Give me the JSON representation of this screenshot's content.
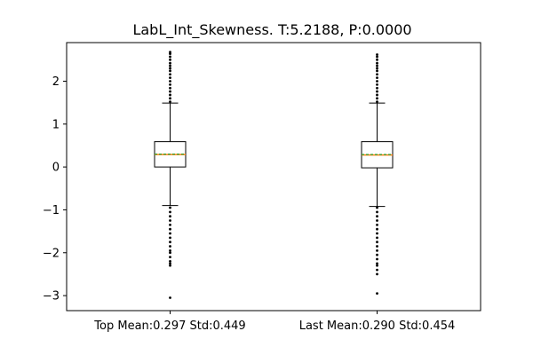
{
  "chart_data": {
    "type": "boxplot",
    "title": "LabL_Int_Skewness. T:5.2188, P:0.0000",
    "xlabel": "",
    "ylabel": "",
    "categories": [
      "Top Mean:0.297 Std:0.449",
      "Last Mean:0.290 Std:0.454"
    ],
    "ylim": [
      -3.35,
      2.9
    ],
    "yticks": [
      -3,
      -2,
      -1,
      0,
      1,
      2
    ],
    "ytick_labels": [
      "−3",
      "−2",
      "−1",
      "0",
      "1",
      "2"
    ],
    "grid": false,
    "series": [
      {
        "q1": 0.0,
        "median": 0.29,
        "mean": 0.297,
        "q3": 0.59,
        "whisker_low": -0.9,
        "whisker_high": 1.49,
        "outliers_high": [
          1.52,
          1.6,
          1.68,
          1.76,
          1.84,
          1.92,
          2.0,
          2.08,
          2.16,
          2.24,
          2.3,
          2.36,
          2.42,
          2.5,
          2.57,
          2.64,
          2.68
        ],
        "outliers_low": [
          -0.95,
          -1.05,
          -1.15,
          -1.25,
          -1.35,
          -1.45,
          -1.55,
          -1.65,
          -1.75,
          -1.85,
          -1.95,
          -2.0,
          -2.1,
          -2.2,
          -2.25,
          -2.3,
          -3.05
        ]
      },
      {
        "q1": -0.02,
        "median": 0.28,
        "mean": 0.29,
        "q3": 0.59,
        "whisker_low": -0.92,
        "whisker_high": 1.49,
        "outliers_high": [
          1.52,
          1.6,
          1.68,
          1.76,
          1.84,
          1.92,
          2.0,
          2.08,
          2.16,
          2.24,
          2.3,
          2.36,
          2.42,
          2.5,
          2.57,
          2.62
        ],
        "outliers_low": [
          -0.95,
          -1.05,
          -1.15,
          -1.25,
          -1.35,
          -1.45,
          -1.55,
          -1.65,
          -1.75,
          -1.85,
          -1.95,
          -2.05,
          -2.15,
          -2.25,
          -2.3,
          -2.4,
          -2.5,
          -2.95
        ]
      }
    ]
  },
  "style": {
    "box_color": "#000000",
    "median_color": "#ff7f0e",
    "mean_line_color": "#2ca02c",
    "background": "#ffffff"
  }
}
